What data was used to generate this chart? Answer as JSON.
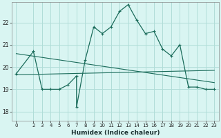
{
  "xlabel": "Humidex (Indice chaleur)",
  "ylabel": "",
  "bg_color": "#d9f5f2",
  "grid_color": "#b0ddd8",
  "line_color": "#1a6b5a",
  "x_ticks": [
    0,
    2,
    3,
    4,
    5,
    6,
    7,
    8,
    9,
    10,
    11,
    12,
    13,
    14,
    15,
    16,
    17,
    18,
    19,
    20,
    21,
    22,
    23
  ],
  "ylim": [
    17.6,
    22.9
  ],
  "xlim": [
    -0.5,
    23.5
  ],
  "yticks": [
    18,
    19,
    20,
    21,
    22
  ],
  "curve1_x": [
    0,
    2,
    3,
    4,
    5,
    6,
    7,
    7,
    8,
    9,
    10,
    11,
    12,
    13,
    14,
    15,
    16,
    17,
    18,
    19,
    20,
    21,
    22,
    23
  ],
  "curve1_y": [
    19.7,
    20.7,
    19.0,
    19.0,
    19.0,
    19.2,
    19.6,
    18.2,
    20.3,
    21.8,
    21.5,
    21.8,
    22.5,
    22.8,
    22.1,
    21.5,
    21.6,
    20.8,
    20.5,
    21.0,
    19.1,
    19.1,
    19.0,
    19.0
  ],
  "line2_x": [
    0,
    23
  ],
  "line2_y": [
    20.6,
    19.3
  ],
  "line3_x": [
    0,
    23
  ],
  "line3_y": [
    19.65,
    19.85
  ]
}
